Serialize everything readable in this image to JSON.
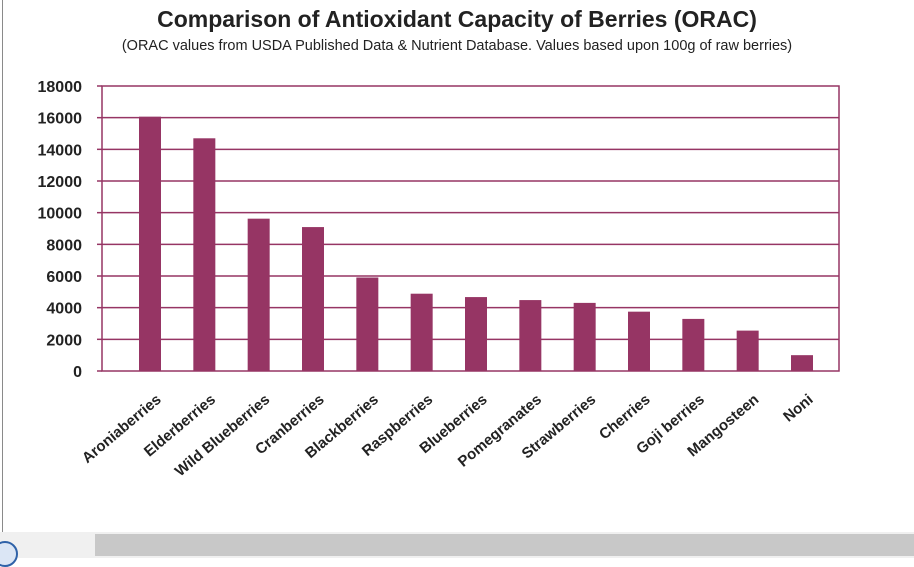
{
  "chart_data": {
    "type": "bar",
    "title": "Comparison of Antioxidant Capacity of Berries (ORAC)",
    "subtitle": "(ORAC values from USDA Published Data & Nutrient Database. Values based upon 100g of raw berries)",
    "xlabel": "",
    "ylabel": "",
    "categories": [
      "Aroniaberries",
      "Elderberries",
      "Wild Blueberries",
      "Cranberries",
      "Blackberries",
      "Raspberries",
      "Blueberries",
      "Pomegranates",
      "Strawberries",
      "Cherries",
      "Goji berries",
      "Mangosteen",
      "Noni"
    ],
    "values": [
      16062,
      14697,
      9621,
      9090,
      5905,
      4882,
      4669,
      4479,
      4302,
      3747,
      3290,
      2551,
      1000
    ],
    "ylim": [
      0,
      18000
    ],
    "yticks": [
      "0",
      "2000",
      "4000",
      "6000",
      "8000",
      "10000",
      "12000",
      "14000",
      "16000",
      "18000"
    ],
    "grid": true,
    "bar_color": "#963564",
    "grid_color": "#963564"
  },
  "window": {
    "scrollbar": "horizontal-scrollbar"
  }
}
